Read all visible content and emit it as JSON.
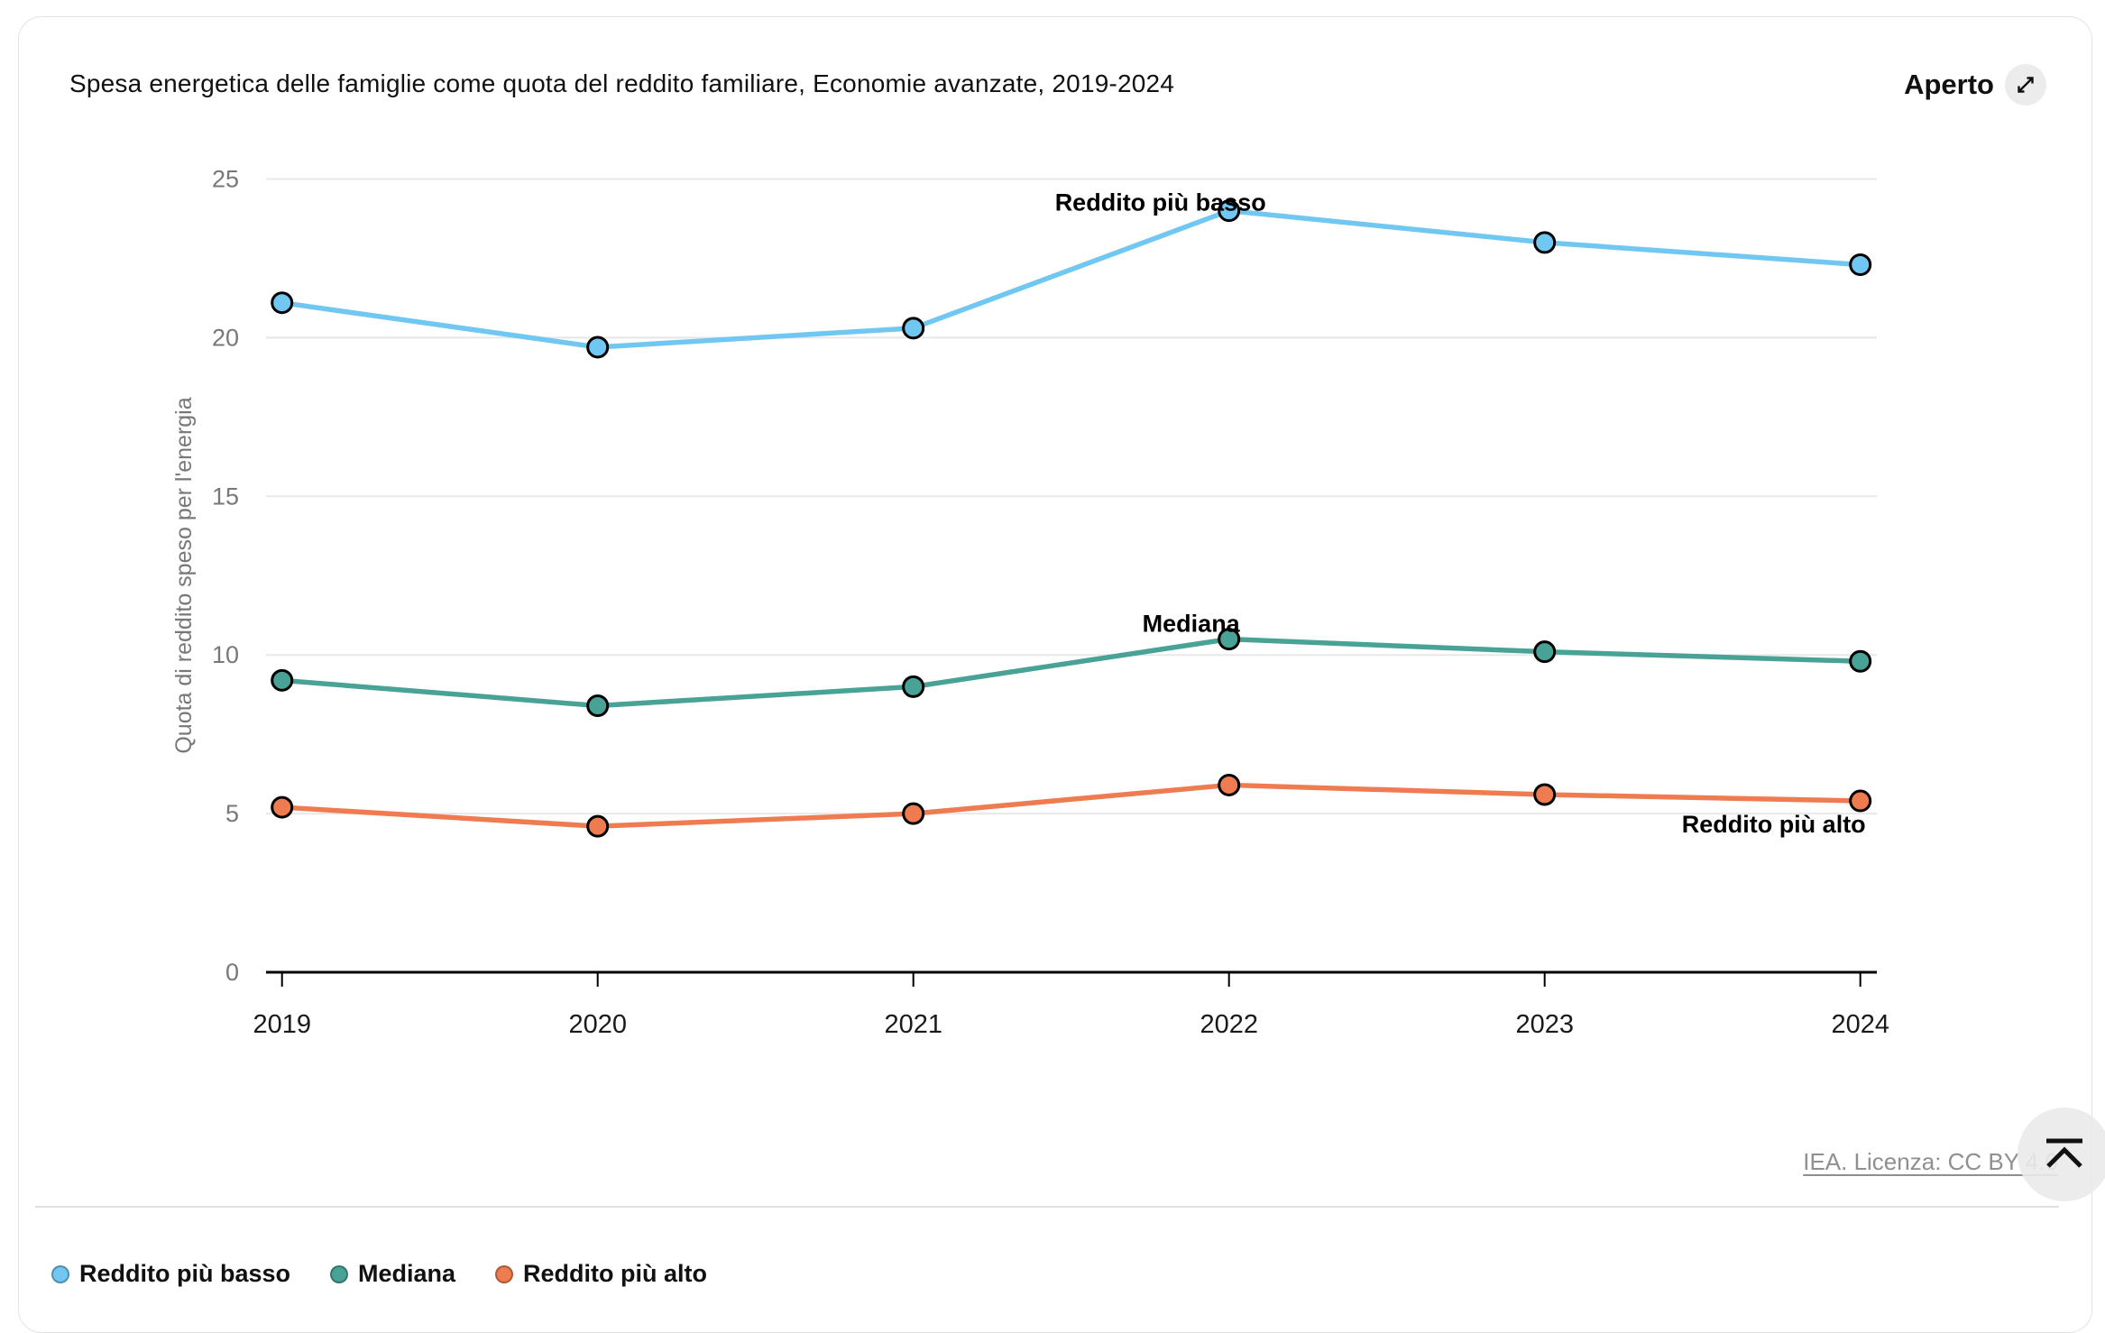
{
  "header": {
    "title": "Spesa energetica delle famiglie come quota del reddito familiare, Economie avanzate, 2019-2024",
    "open_label": "Aperto"
  },
  "footer": {
    "attribution": "IEA. Licenza: CC BY 4.0"
  },
  "legend": {
    "items": [
      {
        "label": "Reddito più basso",
        "color": "#6FC7F2"
      },
      {
        "label": "Mediana",
        "color": "#48A295"
      },
      {
        "label": "Reddito più alto",
        "color": "#EF7C50"
      }
    ]
  },
  "chart_data": {
    "type": "line",
    "title": "Spesa energetica delle famiglie come quota del reddito familiare, Economie avanzate, 2019-2024",
    "x": [
      2019,
      2020,
      2021,
      2022,
      2023,
      2024
    ],
    "series": [
      {
        "name": "Reddito più basso",
        "color": "#6FC7F2",
        "values": [
          21.1,
          19.7,
          20.3,
          24.0,
          23.0,
          22.3
        ]
      },
      {
        "name": "Mediana",
        "color": "#48A295",
        "values": [
          9.2,
          8.4,
          9.0,
          10.5,
          10.1,
          9.8
        ]
      },
      {
        "name": "Reddito più alto",
        "color": "#EF7C50",
        "values": [
          5.2,
          4.6,
          5.0,
          5.9,
          5.6,
          5.4
        ]
      }
    ],
    "xlabel": "",
    "ylabel": "Quota di reddito speso per l'energia",
    "ylim": [
      0,
      25
    ],
    "yticks": [
      0,
      5,
      10,
      15,
      20,
      25
    ],
    "grid": true,
    "legend_position": "bottom",
    "colors": {
      "grid": "#e8e8e8",
      "axis": "#000000",
      "tick_text": "#787878",
      "year_text": "#1a1a1a"
    }
  }
}
